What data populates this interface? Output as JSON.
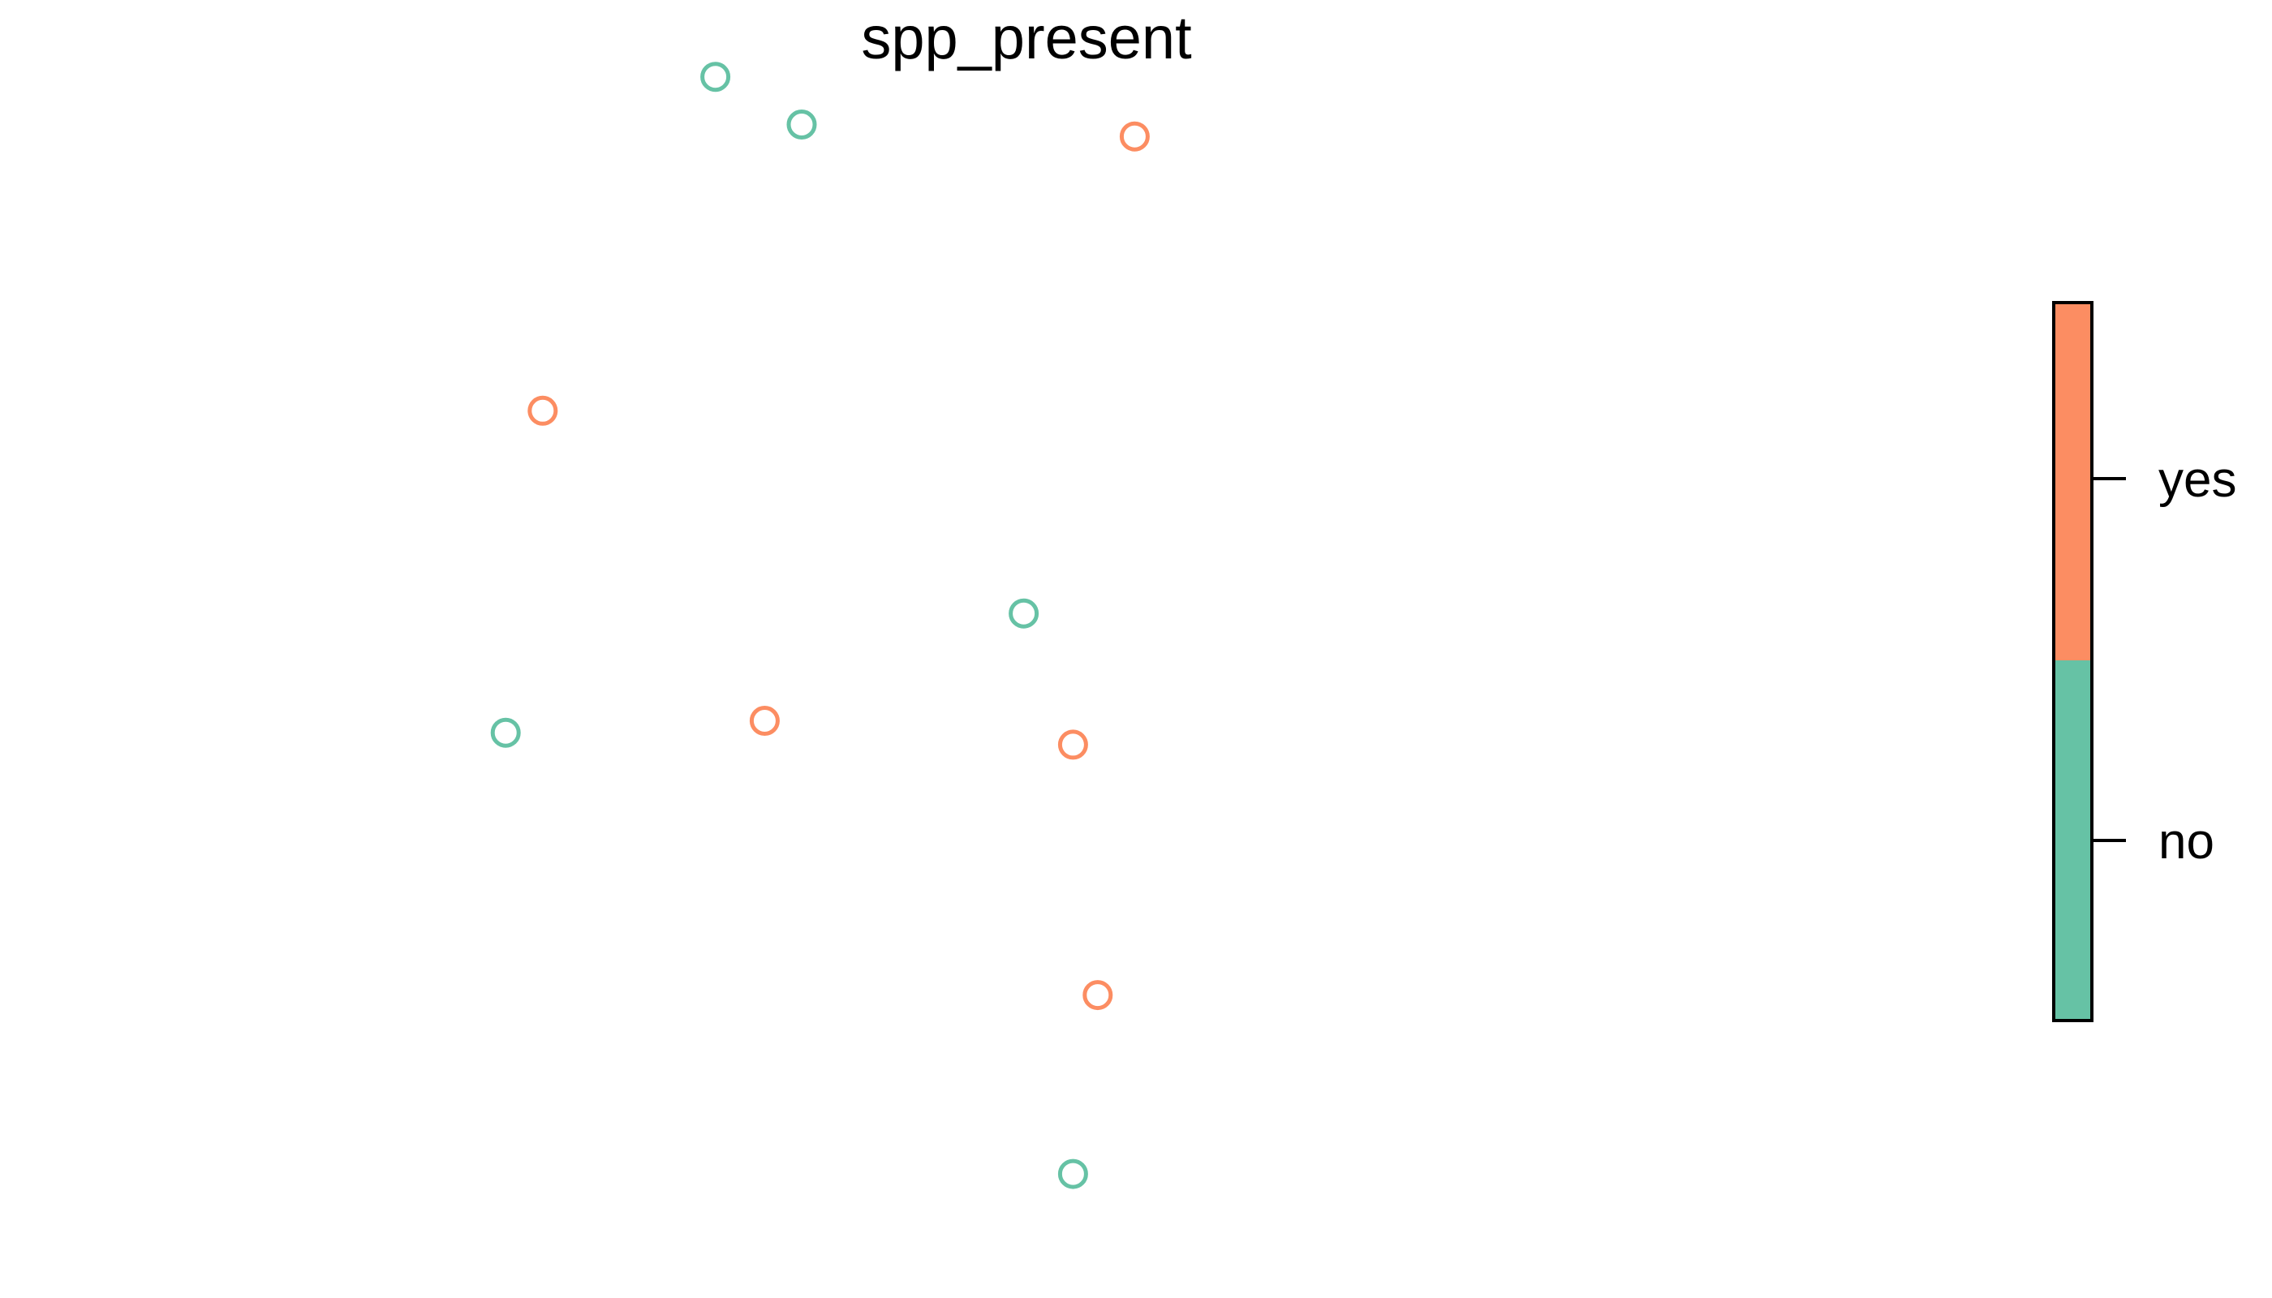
{
  "chart_data": {
    "type": "scatter",
    "title": "spp_present",
    "xlabel": "",
    "ylabel": "",
    "axes_visible": false,
    "grid": false,
    "legend": {
      "type": "categorical-colorbar",
      "placement": "right",
      "categories": [
        {
          "label": "yes",
          "color": "#FC8D62"
        },
        {
          "label": "no",
          "color": "#66C2A5"
        }
      ]
    },
    "xlim": [
      0,
      10
    ],
    "ylim": [
      0,
      10
    ],
    "points": [
      {
        "x": 3.3,
        "y": 9.9,
        "category": "no"
      },
      {
        "x": 4.0,
        "y": 9.5,
        "category": "no"
      },
      {
        "x": 6.7,
        "y": 9.4,
        "category": "yes"
      },
      {
        "x": 1.9,
        "y": 7.1,
        "category": "yes"
      },
      {
        "x": 5.8,
        "y": 5.4,
        "category": "no"
      },
      {
        "x": 1.6,
        "y": 4.4,
        "category": "no"
      },
      {
        "x": 3.7,
        "y": 4.5,
        "category": "yes"
      },
      {
        "x": 6.2,
        "y": 4.3,
        "category": "yes"
      },
      {
        "x": 6.4,
        "y": 2.2,
        "category": "yes"
      },
      {
        "x": 6.2,
        "y": 0.7,
        "category": "no"
      }
    ]
  }
}
